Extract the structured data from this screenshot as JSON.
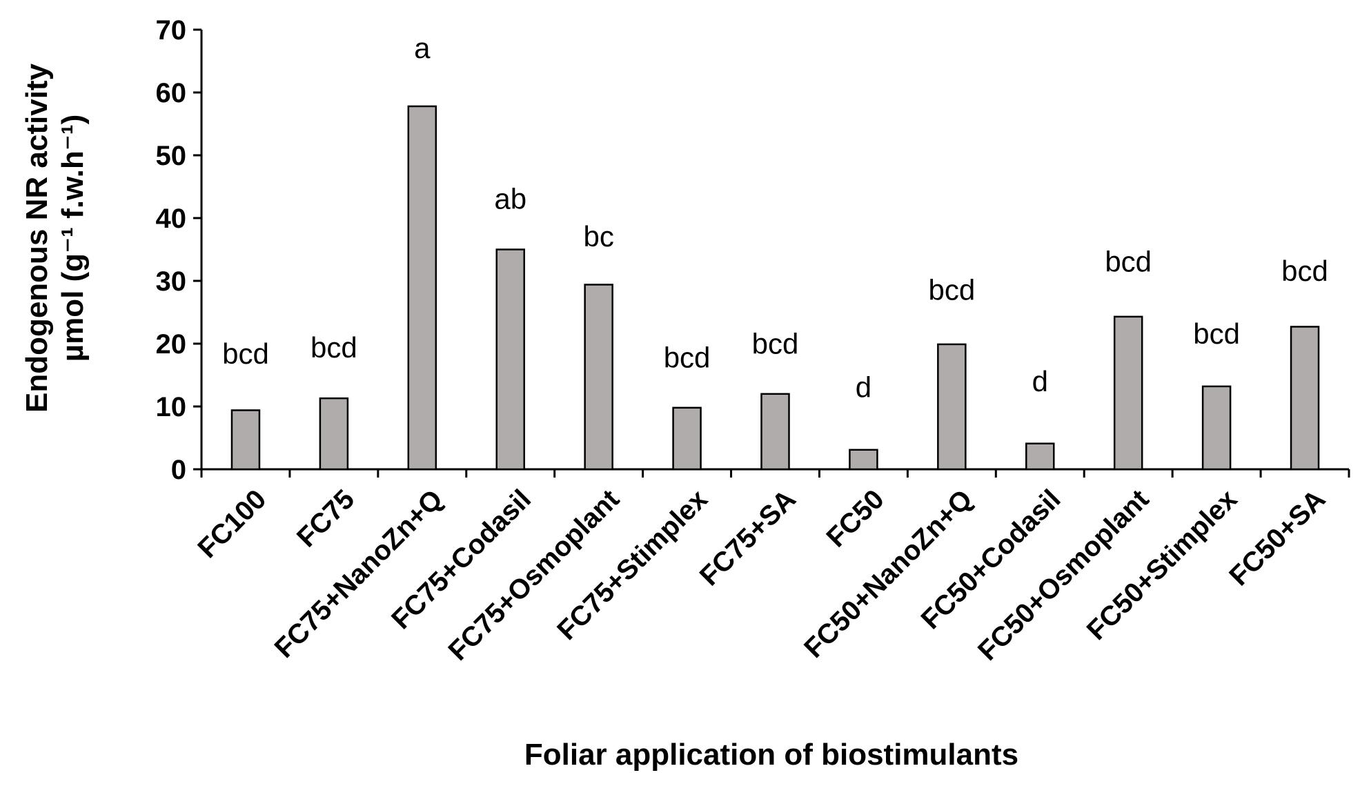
{
  "chart_data": {
    "type": "bar",
    "xlabel": "Foliar application of biostimulants",
    "ylabel_line1": "Endogenous NR activity",
    "ylabel_line2": "µmol (g⁻¹ f.w.h⁻¹)",
    "ylim": [
      0,
      70
    ],
    "yticks": [
      0,
      10,
      20,
      30,
      40,
      50,
      60,
      70
    ],
    "grid": false,
    "legend": "none",
    "bar_color": "#b0acac",
    "bar_stroke": "#000000",
    "categories": [
      "FC100",
      "FC75",
      "FC75+NanoZn+Q",
      "FC75+Codasil",
      "FC75+Osmoplant",
      "FC75+Stimplex",
      "FC75+SA",
      "FC50",
      "FC50+NanoZn+Q",
      "FC50+Codasil",
      "FC50+Osmoplant",
      "FC50+Stimplex",
      "FC50+SA"
    ],
    "values": [
      9.4,
      11.3,
      57.8,
      35.0,
      29.4,
      9.8,
      12.0,
      3.1,
      19.9,
      4.1,
      24.3,
      13.2,
      22.7
    ],
    "labels": [
      "bcd",
      "bcd",
      "a",
      "ab",
      "bc",
      "bcd",
      "bcd",
      "d",
      "bcd",
      "d",
      "bcd",
      "bcd",
      "bcd"
    ],
    "label_values": [
      16.8,
      17.8,
      65.5,
      41.5,
      35.5,
      16.2,
      18.4,
      11.5,
      27.0,
      12.4,
      31.5,
      20.0,
      30.0
    ]
  }
}
